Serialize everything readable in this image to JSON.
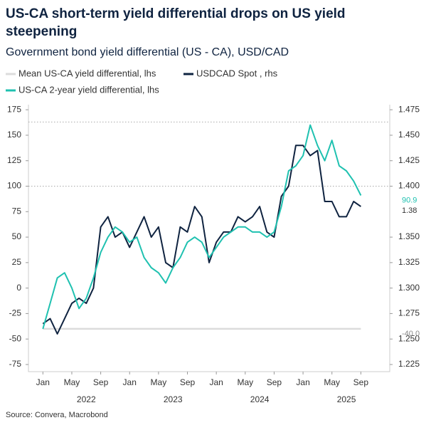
{
  "chart_data": {
    "type": "line",
    "title": "US-CA short-term yield differential drops on US yield steepening",
    "subtitle": "Government bond yield differential (US - CA), USD/CAD",
    "source": "Source: Convera, Macrobond",
    "x": [
      "2022-01",
      "2022-02",
      "2022-03",
      "2022-04",
      "2022-05",
      "2022-06",
      "2022-07",
      "2022-08",
      "2022-09",
      "2022-10",
      "2022-11",
      "2022-12",
      "2023-01",
      "2023-02",
      "2023-03",
      "2023-04",
      "2023-05",
      "2023-06",
      "2023-07",
      "2023-08",
      "2023-09",
      "2023-10",
      "2023-11",
      "2023-12",
      "2024-01",
      "2024-02",
      "2024-03",
      "2024-04",
      "2024-05",
      "2024-06",
      "2024-07",
      "2024-08",
      "2024-09",
      "2024-10",
      "2024-11",
      "2024-12",
      "2025-01",
      "2025-02",
      "2025-03",
      "2025-04",
      "2025-05",
      "2025-06",
      "2025-07",
      "2025-08",
      "2025-09"
    ],
    "xlim": [
      "2021-11",
      "2026-01"
    ],
    "xticks": [
      {
        "value": "2022-01",
        "label": "Jan"
      },
      {
        "value": "2022-05",
        "label": "May"
      },
      {
        "value": "2022-09",
        "label": "Sep"
      },
      {
        "value": "2023-01",
        "label": "Jan"
      },
      {
        "value": "2023-05",
        "label": "May"
      },
      {
        "value": "2023-09",
        "label": "Sep"
      },
      {
        "value": "2024-01",
        "label": "Jan"
      },
      {
        "value": "2024-05",
        "label": "May"
      },
      {
        "value": "2024-09",
        "label": "Sep"
      },
      {
        "value": "2025-01",
        "label": "Jan"
      },
      {
        "value": "2025-05",
        "label": "May"
      },
      {
        "value": "2025-09",
        "label": "Sep"
      }
    ],
    "xgroups": [
      {
        "value": "2022-07",
        "label": "2022"
      },
      {
        "value": "2023-07",
        "label": "2023"
      },
      {
        "value": "2024-07",
        "label": "2024"
      },
      {
        "value": "2025-07",
        "label": "2025"
      }
    ],
    "ylim": [
      -82,
      180
    ],
    "yticks": [
      -75,
      -50,
      -25,
      0,
      25,
      50,
      75,
      100,
      125,
      150,
      175
    ],
    "y2lim": [
      1.218,
      1.48
    ],
    "y2ticks": [
      1.225,
      {
        "value": 1.25,
        "label": "1.250"
      },
      1.275,
      {
        "value": 1.3,
        "label": "1.300"
      },
      1.325,
      {
        "value": 1.35,
        "label": "1.350"
      },
      {
        "value": 1.4,
        "label": "1.400"
      },
      1.425,
      {
        "value": 1.45,
        "label": "1.450"
      },
      1.475
    ],
    "hlines": [
      100,
      163
    ],
    "series": [
      {
        "name": "Mean US-CA yield differential, lhs",
        "color": "#dcdcdc",
        "end_label": "-40.0",
        "values": [
          -40,
          -40,
          -40,
          -40,
          -40,
          -40,
          -40,
          -40,
          -40,
          -40,
          -40,
          -40,
          -40,
          -40,
          -40,
          -40,
          -40,
          -40,
          -40,
          -40,
          -40,
          -40,
          -40,
          -40,
          -40,
          -40,
          -40,
          -40,
          -40,
          -40,
          -40,
          -40,
          -40,
          -40,
          -40,
          -40,
          -40,
          -40,
          -40,
          -40,
          -40,
          -40,
          -40,
          -40,
          -40
        ]
      },
      {
        "name": "USDCAD Spot , rhs",
        "color": "#0f2340",
        "axis": "y2",
        "end_label": "1.38",
        "values": [
          1.265,
          1.27,
          1.255,
          1.27,
          1.285,
          1.29,
          1.285,
          1.3,
          1.36,
          1.37,
          1.35,
          1.355,
          1.34,
          1.355,
          1.37,
          1.35,
          1.36,
          1.325,
          1.32,
          1.36,
          1.355,
          1.38,
          1.37,
          1.325,
          1.345,
          1.355,
          1.355,
          1.37,
          1.365,
          1.37,
          1.38,
          1.355,
          1.35,
          1.39,
          1.4,
          1.44,
          1.44,
          1.43,
          1.435,
          1.385,
          1.385,
          1.37,
          1.37,
          1.385,
          1.38
        ]
      },
      {
        "name": "US-CA 2-year yield differential, lhs",
        "color": "#1fc1b0",
        "end_label": "90.9",
        "values": [
          -40,
          -15,
          10,
          15,
          0,
          -20,
          -10,
          10,
          35,
          50,
          60,
          55,
          45,
          50,
          30,
          20,
          15,
          5,
          20,
          30,
          45,
          50,
          45,
          30,
          40,
          50,
          55,
          60,
          60,
          55,
          55,
          50,
          55,
          80,
          115,
          120,
          130,
          160,
          140,
          125,
          145,
          120,
          115,
          105,
          90.9
        ]
      }
    ]
  }
}
